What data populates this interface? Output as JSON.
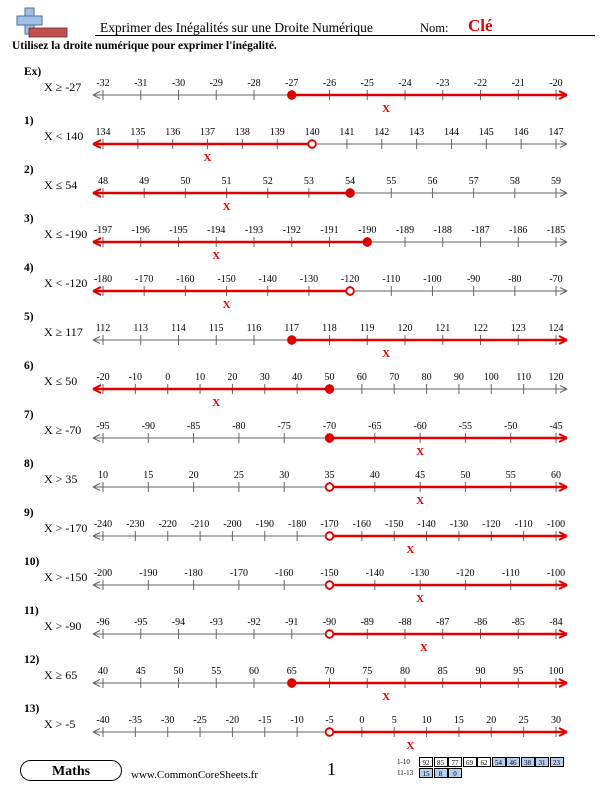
{
  "header": {
    "title": "Exprimer des Inégalités sur une Droite Numérique",
    "name_label": "Nom:",
    "name_value": "Clé"
  },
  "instructions": "Utilisez la droite numérique pour exprimer l'inégalité.",
  "answer_mark": "X",
  "colors": {
    "answer": "#e00000",
    "line": "#666666",
    "score_fill": "#b7cdf0",
    "logo": "#9fc1e6",
    "logo_bar": "#c0504d"
  },
  "problems": [
    {
      "label": "Ex)",
      "inequality": "X ≥ -27",
      "ticks": [
        "-32",
        "-31",
        "-30",
        "-29",
        "-28",
        "-27",
        "-26",
        "-25",
        "-24",
        "-23",
        "-22",
        "-21",
        "-20"
      ],
      "point_index": 5,
      "filled": true,
      "direction": "right",
      "x_tick": 7.5
    },
    {
      "label": "1)",
      "inequality": "X < 140",
      "ticks": [
        "134",
        "135",
        "136",
        "137",
        "138",
        "139",
        "140",
        "141",
        "142",
        "143",
        "144",
        "145",
        "146",
        "147"
      ],
      "point_index": 6,
      "filled": false,
      "direction": "left",
      "x_tick": 3
    },
    {
      "label": "2)",
      "inequality": "X ≤ 54",
      "ticks": [
        "48",
        "49",
        "50",
        "51",
        "52",
        "53",
        "54",
        "55",
        "56",
        "57",
        "58",
        "59"
      ],
      "point_index": 6,
      "filled": true,
      "direction": "left",
      "x_tick": 3
    },
    {
      "label": "3)",
      "inequality": "X ≤ -190",
      "ticks": [
        "-197",
        "-196",
        "-195",
        "-194",
        "-193",
        "-192",
        "-191",
        "-190",
        "-189",
        "-188",
        "-187",
        "-186",
        "-185"
      ],
      "point_index": 7,
      "filled": true,
      "direction": "left",
      "x_tick": 3
    },
    {
      "label": "4)",
      "inequality": "X < -120",
      "ticks": [
        "-180",
        "-170",
        "-160",
        "-150",
        "-140",
        "-130",
        "-120",
        "-110",
        "-100",
        "-90",
        "-80",
        "-70"
      ],
      "point_index": 6,
      "filled": false,
      "direction": "left",
      "x_tick": 3
    },
    {
      "label": "5)",
      "inequality": "X ≥ 117",
      "ticks": [
        "112",
        "113",
        "114",
        "115",
        "116",
        "117",
        "118",
        "119",
        "120",
        "121",
        "122",
        "123",
        "124"
      ],
      "point_index": 5,
      "filled": true,
      "direction": "right",
      "x_tick": 7.5
    },
    {
      "label": "6)",
      "inequality": "X ≤ 50",
      "ticks": [
        "-20",
        "-10",
        "0",
        "10",
        "20",
        "30",
        "40",
        "50",
        "60",
        "70",
        "80",
        "90",
        "100",
        "110",
        "120"
      ],
      "point_index": 7,
      "filled": true,
      "direction": "left",
      "x_tick": 3.5
    },
    {
      "label": "7)",
      "inequality": "X ≥ -70",
      "ticks": [
        "-95",
        "-90",
        "-85",
        "-80",
        "-75",
        "-70",
        "-65",
        "-60",
        "-55",
        "-50",
        "-45"
      ],
      "point_index": 5,
      "filled": true,
      "direction": "right",
      "x_tick": 7
    },
    {
      "label": "8)",
      "inequality": "X > 35",
      "ticks": [
        "10",
        "15",
        "20",
        "25",
        "30",
        "35",
        "40",
        "45",
        "50",
        "55",
        "60"
      ],
      "point_index": 5,
      "filled": false,
      "direction": "right",
      "x_tick": 7
    },
    {
      "label": "9)",
      "inequality": "X > -170",
      "ticks": [
        "-240",
        "-230",
        "-220",
        "-210",
        "-200",
        "-190",
        "-180",
        "-170",
        "-160",
        "-150",
        "-140",
        "-130",
        "-120",
        "-110",
        "-100"
      ],
      "point_index": 7,
      "filled": false,
      "direction": "right",
      "x_tick": 9.5
    },
    {
      "label": "10)",
      "inequality": "X > -150",
      "ticks": [
        "-200",
        "-190",
        "-180",
        "-170",
        "-160",
        "-150",
        "-140",
        "-130",
        "-120",
        "-110",
        "-100"
      ],
      "point_index": 5,
      "filled": false,
      "direction": "right",
      "x_tick": 7
    },
    {
      "label": "11)",
      "inequality": "X > -90",
      "ticks": [
        "-96",
        "-95",
        "-94",
        "-93",
        "-92",
        "-91",
        "-90",
        "-89",
        "-88",
        "-87",
        "-86",
        "-85",
        "-84"
      ],
      "point_index": 6,
      "filled": false,
      "direction": "right",
      "x_tick": 8.5
    },
    {
      "label": "12)",
      "inequality": "X ≥ 65",
      "ticks": [
        "40",
        "45",
        "50",
        "55",
        "60",
        "65",
        "70",
        "75",
        "80",
        "85",
        "90",
        "95",
        "100"
      ],
      "point_index": 5,
      "filled": true,
      "direction": "right",
      "x_tick": 7.5
    },
    {
      "label": "13)",
      "inequality": "X > -5",
      "ticks": [
        "-40",
        "-35",
        "-30",
        "-25",
        "-20",
        "-15",
        "-10",
        "-5",
        "0",
        "5",
        "10",
        "15",
        "20",
        "25",
        "30"
      ],
      "point_index": 7,
      "filled": false,
      "direction": "right",
      "x_tick": 9.5
    }
  ],
  "footer": {
    "subject": "Maths",
    "site": "www.CommonCoreSheets.fr",
    "page": "1"
  },
  "score_table": {
    "row1": {
      "label": "1-10",
      "values": [
        "92",
        "85",
        "77",
        "69",
        "62",
        "54",
        "46",
        "38",
        "31",
        "23"
      ]
    },
    "row2": {
      "label": "11-13",
      "values": [
        "15",
        "8",
        "0"
      ]
    }
  }
}
